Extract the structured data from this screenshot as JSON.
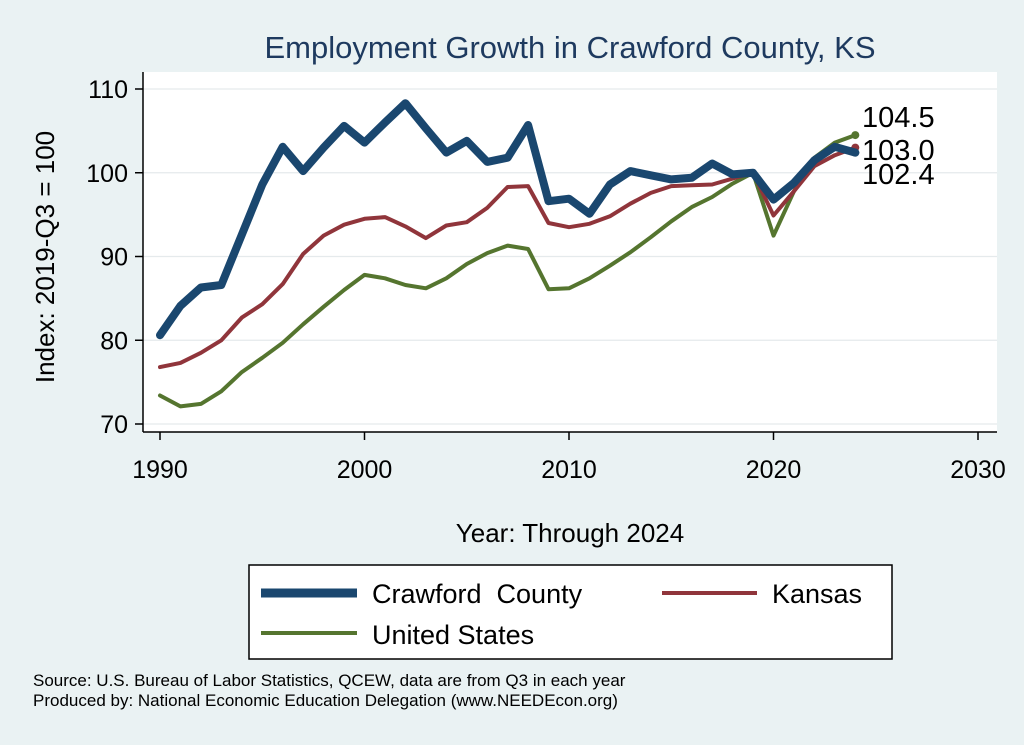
{
  "chart_data": {
    "type": "line",
    "title": "Employment Growth in Crawford County, KS",
    "xlabel": "Year: Through 2024",
    "ylabel": "Index: 2019-Q3 = 100",
    "xlim": [
      1990,
      2030
    ],
    "ylim": [
      70,
      110
    ],
    "x_ticks": [
      "1990",
      "2000",
      "2010",
      "2020",
      "2030"
    ],
    "y_ticks": [
      "70",
      "80",
      "90",
      "100",
      "110"
    ],
    "grid": true,
    "legend_position": "bottom",
    "x": [
      1990,
      1991,
      1992,
      1993,
      1994,
      1995,
      1996,
      1997,
      1998,
      1999,
      2000,
      2001,
      2002,
      2003,
      2004,
      2005,
      2006,
      2007,
      2008,
      2009,
      2010,
      2011,
      2012,
      2013,
      2014,
      2015,
      2016,
      2017,
      2018,
      2019,
      2020,
      2021,
      2022,
      2023,
      2024
    ],
    "series": [
      {
        "name": "Crawford  County",
        "color": "#1a476f",
        "end_label": "102.4",
        "values": [
          80.6,
          84.1,
          86.3,
          86.6,
          92.6,
          98.6,
          103.1,
          100.2,
          103.0,
          105.6,
          103.6,
          106.0,
          108.3,
          105.3,
          102.4,
          103.8,
          101.3,
          101.8,
          105.7,
          96.6,
          96.9,
          95.1,
          98.6,
          100.2,
          99.7,
          99.2,
          99.4,
          101.1,
          99.8,
          100.0,
          96.8,
          98.8,
          101.5,
          103.1,
          102.4
        ]
      },
      {
        "name": "Kansas",
        "color": "#90353b",
        "end_label": "103.0",
        "values": [
          76.8,
          77.3,
          78.5,
          80.0,
          82.7,
          84.3,
          86.7,
          90.3,
          92.5,
          93.8,
          94.5,
          94.7,
          93.6,
          92.2,
          93.7,
          94.1,
          95.8,
          98.3,
          98.4,
          94.0,
          93.5,
          93.9,
          94.8,
          96.3,
          97.6,
          98.4,
          98.5,
          98.6,
          99.3,
          100.0,
          94.9,
          97.8,
          100.8,
          102.1,
          103.0
        ]
      },
      {
        "name": "United States",
        "color": "#55752f",
        "end_label": "104.5",
        "values": [
          73.4,
          72.1,
          72.4,
          73.9,
          76.2,
          77.9,
          79.7,
          81.9,
          84.0,
          86.0,
          87.8,
          87.4,
          86.6,
          86.2,
          87.4,
          89.1,
          90.4,
          91.3,
          90.9,
          86.1,
          86.2,
          87.4,
          88.9,
          90.5,
          92.3,
          94.2,
          95.9,
          97.1,
          98.7,
          100.0,
          92.5,
          97.8,
          101.8,
          103.6,
          104.5
        ]
      }
    ]
  },
  "legend": {
    "crawford": "Crawford  County",
    "kansas": "Kansas",
    "us": "United States"
  },
  "source": {
    "line1": "Source: U.S. Bureau of Labor Statistics, QCEW, data are from Q3 in each year",
    "line2": "Produced by: National Economic Education Delegation (www.NEEDEcon.org)"
  }
}
